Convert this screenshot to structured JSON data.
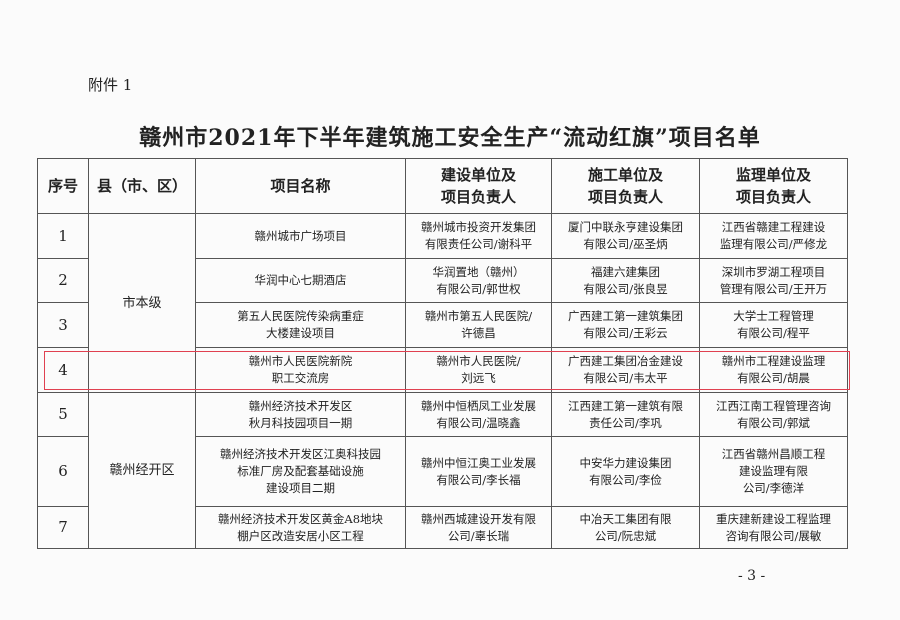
{
  "attachment_label": "附件 1",
  "title": "赣州市2021年下半年建筑施工安全生产“流动红旗”项目名单",
  "table": {
    "headers": [
      "序号",
      "县（市、区）",
      "项目名称",
      "建设单位及\n项目负责人",
      "施工单位及\n项目负责人",
      "监理单位及\n项目负责人"
    ],
    "districts": [
      "市本级",
      "赣州经开区"
    ],
    "rows": [
      {
        "seq": "1",
        "project": "赣州城市广场项目",
        "owner": "赣州城市投资开发集团\n有限责任公司/谢科平",
        "builder": "厦门中联永亨建设集团\n有限公司/巫圣炳",
        "supervisor": "江西省赣建工程建设\n监理有限公司/严修龙"
      },
      {
        "seq": "2",
        "project": "华润中心七期酒店",
        "owner": "华润置地（赣州）\n有限公司/郭世权",
        "builder": "福建六建集团\n有限公司/张良昱",
        "supervisor": "深圳市罗湖工程项目\n管理有限公司/王开万"
      },
      {
        "seq": "3",
        "project": "第五人民医院传染病重症\n大楼建设项目",
        "owner": "赣州市第五人民医院/\n许德昌",
        "builder": "广西建工第一建筑集团\n有限公司/王彩云",
        "supervisor": "大学士工程管理\n有限公司/程平"
      },
      {
        "seq": "4",
        "project": "赣州市人民医院新院\n职工交流房",
        "owner": "赣州市人民医院/\n刘远飞",
        "builder": "广西建工集团冶金建设\n有限公司/韦太平",
        "supervisor": "赣州市工程建设监理\n有限公司/胡晨"
      },
      {
        "seq": "5",
        "project": "赣州经济技术开发区\n秋月科技园项目一期",
        "owner": "赣州中恒栖凤工业发展\n有限公司/温晓鑫",
        "builder": "江西建工第一建筑有限\n责任公司/李巩",
        "supervisor": "江西江南工程管理咨询\n有限公司/郭斌"
      },
      {
        "seq": "6",
        "project": "赣州经济技术开发区江奥科技园\n标准厂房及配套基础设施\n建设项目二期",
        "owner": "赣州中恒江奥工业发展\n有限公司/李长福",
        "builder": "中安华力建设集团\n有限公司/李俭",
        "supervisor": "江西省赣州昌顺工程\n建设监理有限\n公司/李德洋"
      },
      {
        "seq": "7",
        "project": "赣州经济技术开发区黄金A8地块\n棚户区改造安居小区工程",
        "owner": "赣州西城建设开发有限\n公司/辜长瑞",
        "builder": "中冶天工集团有限\n公司/阮忠斌",
        "supervisor": "重庆建新建设工程监理\n咨询有限公司/展敏"
      }
    ]
  },
  "highlight_color": "#e04050",
  "page_number": "- 3 -"
}
